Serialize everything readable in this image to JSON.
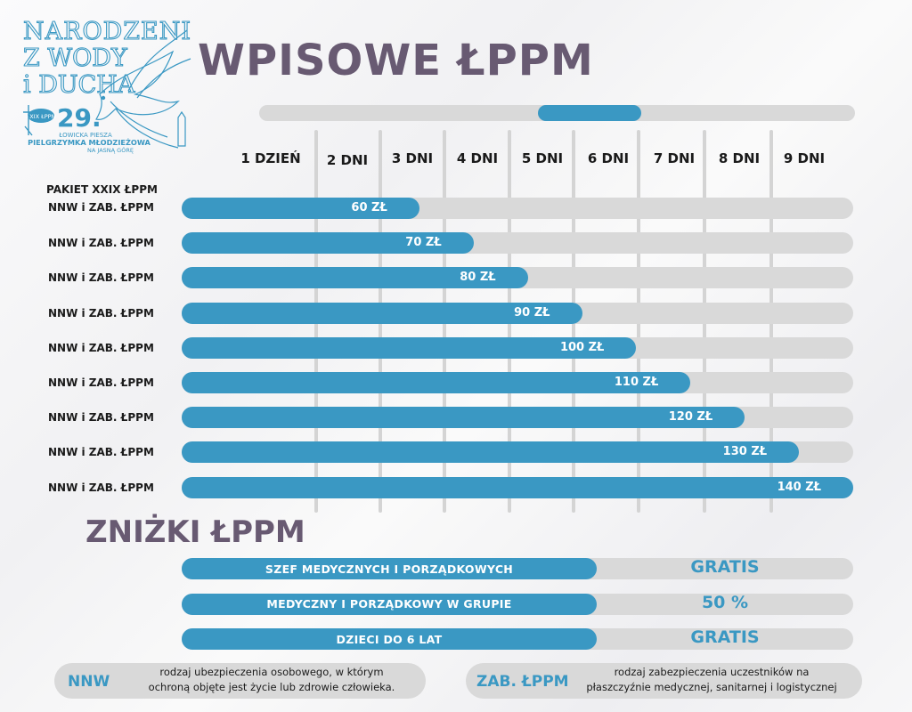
{
  "logo": {
    "lines": [
      "NARODZENI",
      "Z WODY",
      "i DUCHA"
    ],
    "number": "29.",
    "sub1": "ŁOWICKA PIESZA",
    "sub2": "PIELGRZYMKA MŁODZIEŻOWA",
    "sub3": "NA JASNĄ GÓRĘ",
    "seal": "XXIX ŁPPM"
  },
  "colors": {
    "accent": "#3a98c3",
    "title": "#685a72",
    "track": "#d9d9d9"
  },
  "title": "WPISOWE ŁPPM",
  "chart_data": {
    "type": "bar",
    "orientation": "horizontal",
    "header_label": "PAKIET XXIX ŁPPM",
    "x_tick_labels": [
      "1 DZIEŃ",
      "2 DNI",
      "3 DNI",
      "4 DNI",
      "5 DNI",
      "6 DNI",
      "7 DNI",
      "8 DNI",
      "9 DNI"
    ],
    "categories": [
      "NNW i ZAB. ŁPPM",
      "NNW i ZAB. ŁPPM",
      "NNW i ZAB. ŁPPM",
      "NNW i ZAB. ŁPPM",
      "NNW i ZAB. ŁPPM",
      "NNW i ZAB. ŁPPM",
      "NNW i ZAB. ŁPPM",
      "NNW i ZAB. ŁPPM",
      "NNW i ZAB. ŁPPM"
    ],
    "values": [
      60,
      70,
      80,
      90,
      100,
      110,
      120,
      130,
      140
    ],
    "value_labels": [
      "60 ZŁ",
      "70 ZŁ",
      "80 ZŁ",
      "90 ZŁ",
      "100 ZŁ",
      "110 ZŁ",
      "120 ZŁ",
      "130 ZŁ",
      "140 ZŁ"
    ],
    "xlim": [
      40,
      140
    ],
    "grid": true
  },
  "discounts": {
    "title": "ZNIŻKI ŁPPM",
    "items": [
      {
        "label": "SZEF MEDYCZNYCH I PORZĄDKOWYCH",
        "value": "GRATIS"
      },
      {
        "label": "MEDYCZNY I PORZĄDKOWY W GRUPIE",
        "value": "50 %"
      },
      {
        "label": "DZIECI DO 6 LAT",
        "value": "GRATIS"
      }
    ]
  },
  "legend": {
    "nnw": {
      "term": "NNW",
      "line1": "rodzaj ubezpieczenia osobowego, w którym",
      "line2": "ochroną objęte jest życie lub zdrowie człowieka."
    },
    "zab": {
      "term": "ZAB. ŁPPM",
      "line1": "rodzaj zabezpieczenia uczestników na",
      "line2": "płaszczyźnie medycznej, sanitarnej i logistycznej"
    }
  }
}
